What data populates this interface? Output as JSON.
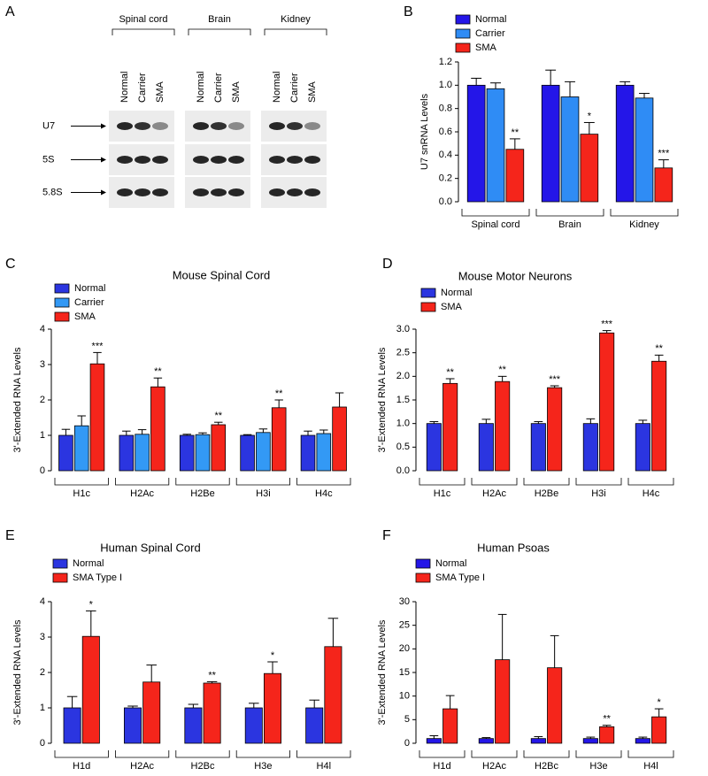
{
  "blot": {
    "label": "A",
    "tissues": [
      "Spinal cord",
      "Brain",
      "Kidney"
    ],
    "lanes": [
      "Normal",
      "Carrier",
      "SMA"
    ],
    "rows": [
      "U7",
      "5S",
      "5.8S"
    ]
  },
  "chart_data": [
    {
      "type": "bar",
      "label": "B",
      "ylabel": "U7 snRNA Levels",
      "categories": [
        "Spinal cord",
        "Brain",
        "Kidney"
      ],
      "series": [
        {
          "name": "Normal",
          "color": "#2416e8",
          "values": [
            1.0,
            1.0,
            1.0
          ],
          "errors": [
            0.06,
            0.13,
            0.03
          ],
          "annotations": [
            null,
            null,
            null
          ]
        },
        {
          "name": "Carrier",
          "color": "#2f8cf5",
          "values": [
            0.97,
            0.9,
            0.89
          ],
          "errors": [
            0.05,
            0.13,
            0.04
          ],
          "annotations": [
            null,
            null,
            null
          ]
        },
        {
          "name": "SMA",
          "color": "#f5251b",
          "values": [
            0.45,
            0.58,
            0.29
          ],
          "errors": [
            0.09,
            0.1,
            0.07
          ],
          "annotations": [
            "**",
            "*",
            "***"
          ]
        }
      ],
      "ylim": [
        0,
        1.2
      ],
      "yticks": [
        {
          "value": 0,
          "label": "0.0"
        },
        0.2,
        0.4,
        0.6,
        0.8,
        {
          "value": 1,
          "label": "1.0"
        },
        1.2
      ],
      "legend": "upper left"
    },
    {
      "type": "bar",
      "label": "C",
      "title": "Mouse Spinal Cord",
      "ylabel": "3'-Extended RNA Levels",
      "categories": [
        "H1c",
        "H2Ac",
        "H2Be",
        "H3i",
        "H4c"
      ],
      "series": [
        {
          "name": "Normal",
          "color": "#2b35e0",
          "values": [
            1,
            1,
            1,
            1,
            1
          ],
          "errors": [
            0.17,
            0.12,
            0.03,
            0.02,
            0.12
          ],
          "annotations": [
            null,
            null,
            null,
            null,
            null
          ]
        },
        {
          "name": "Carrier",
          "color": "#3399f5",
          "values": [
            1.27,
            1.03,
            1.02,
            1.08,
            1.05
          ],
          "errors": [
            0.28,
            0.13,
            0.05,
            0.1,
            0.1
          ],
          "annotations": [
            null,
            null,
            null,
            null,
            null
          ]
        },
        {
          "name": "SMA",
          "color": "#f5251b",
          "values": [
            3.02,
            2.37,
            1.3,
            1.78,
            1.8
          ],
          "errors": [
            0.32,
            0.25,
            0.07,
            0.22,
            0.4
          ],
          "annotations": [
            "***",
            "**",
            "**",
            "**",
            null
          ]
        }
      ],
      "ylim": [
        0,
        4
      ],
      "yticks": [
        0,
        1,
        2,
        3,
        4
      ],
      "legend": "upper left"
    },
    {
      "type": "bar",
      "label": "D",
      "title": "Mouse Motor Neurons",
      "ylabel": "3'-Extended RNA Levels",
      "categories": [
        "H1c",
        "H2Ac",
        "H2Be",
        "H3i",
        "H4c"
      ],
      "series": [
        {
          "name": "Normal",
          "color": "#2b35e0",
          "values": [
            1,
            1,
            1,
            1,
            1
          ],
          "errors": [
            0.04,
            0.09,
            0.04,
            0.1,
            0.07
          ],
          "annotations": [
            null,
            null,
            null,
            null,
            null
          ]
        },
        {
          "name": "SMA",
          "color": "#f5251b",
          "values": [
            1.85,
            1.89,
            1.76,
            2.92,
            2.32
          ],
          "errors": [
            0.1,
            0.11,
            0.04,
            0.05,
            0.13
          ],
          "annotations": [
            "**",
            "**",
            "***",
            "***",
            "**"
          ]
        }
      ],
      "ylim": [
        0,
        3
      ],
      "yticks": [
        {
          "value": 0,
          "label": "0.0"
        },
        0.5,
        {
          "value": 1,
          "label": "1.0"
        },
        1.5,
        {
          "value": 2,
          "label": "2.0"
        },
        2.5,
        {
          "value": 3,
          "label": "3.0"
        }
      ],
      "legend": "upper left"
    },
    {
      "type": "bar",
      "label": "E",
      "title": "Human Spinal Cord",
      "ylabel": "3'-Extended RNA Levels",
      "categories": [
        "H1d",
        "H2Ac",
        "H2Bc",
        "H3e",
        "H4l"
      ],
      "series": [
        {
          "name": "Normal",
          "color": "#2b35e0",
          "values": [
            1,
            1,
            1,
            1,
            1
          ],
          "errors": [
            0.32,
            0.05,
            0.1,
            0.13,
            0.22
          ],
          "annotations": [
            null,
            null,
            null,
            null,
            null
          ]
        },
        {
          "name": "SMA Type I",
          "color": "#f5251b",
          "values": [
            3.02,
            1.73,
            1.7,
            1.97,
            2.73
          ],
          "errors": [
            0.72,
            0.48,
            0.04,
            0.33,
            0.8
          ],
          "annotations": [
            "*",
            null,
            "**",
            "*",
            null
          ]
        }
      ],
      "ylim": [
        0,
        4
      ],
      "yticks": [
        0,
        1,
        2,
        3,
        4
      ],
      "legend": "upper left"
    },
    {
      "type": "bar",
      "label": "F",
      "title": "Human Psoas",
      "ylabel": "3'-Extended RNA Levels",
      "categories": [
        "H1d",
        "H2Ac",
        "H2Bc",
        "H3e",
        "H4l"
      ],
      "series": [
        {
          "name": "Normal",
          "color": "#2416e8",
          "values": [
            1,
            1,
            1,
            1,
            1
          ],
          "errors": [
            0.6,
            0.2,
            0.4,
            0.3,
            0.3
          ],
          "annotations": [
            null,
            null,
            null,
            null,
            null
          ]
        },
        {
          "name": "SMA Type I",
          "color": "#f5251b",
          "values": [
            7.3,
            17.7,
            16,
            3.5,
            5.6
          ],
          "errors": [
            2.8,
            9.6,
            6.8,
            0.3,
            1.7
          ],
          "annotations": [
            null,
            null,
            null,
            "**",
            "*"
          ]
        }
      ],
      "ylim": [
        0,
        30
      ],
      "yticks": [
        0,
        5,
        10,
        15,
        20,
        25,
        30
      ],
      "legend": "upper left"
    }
  ]
}
